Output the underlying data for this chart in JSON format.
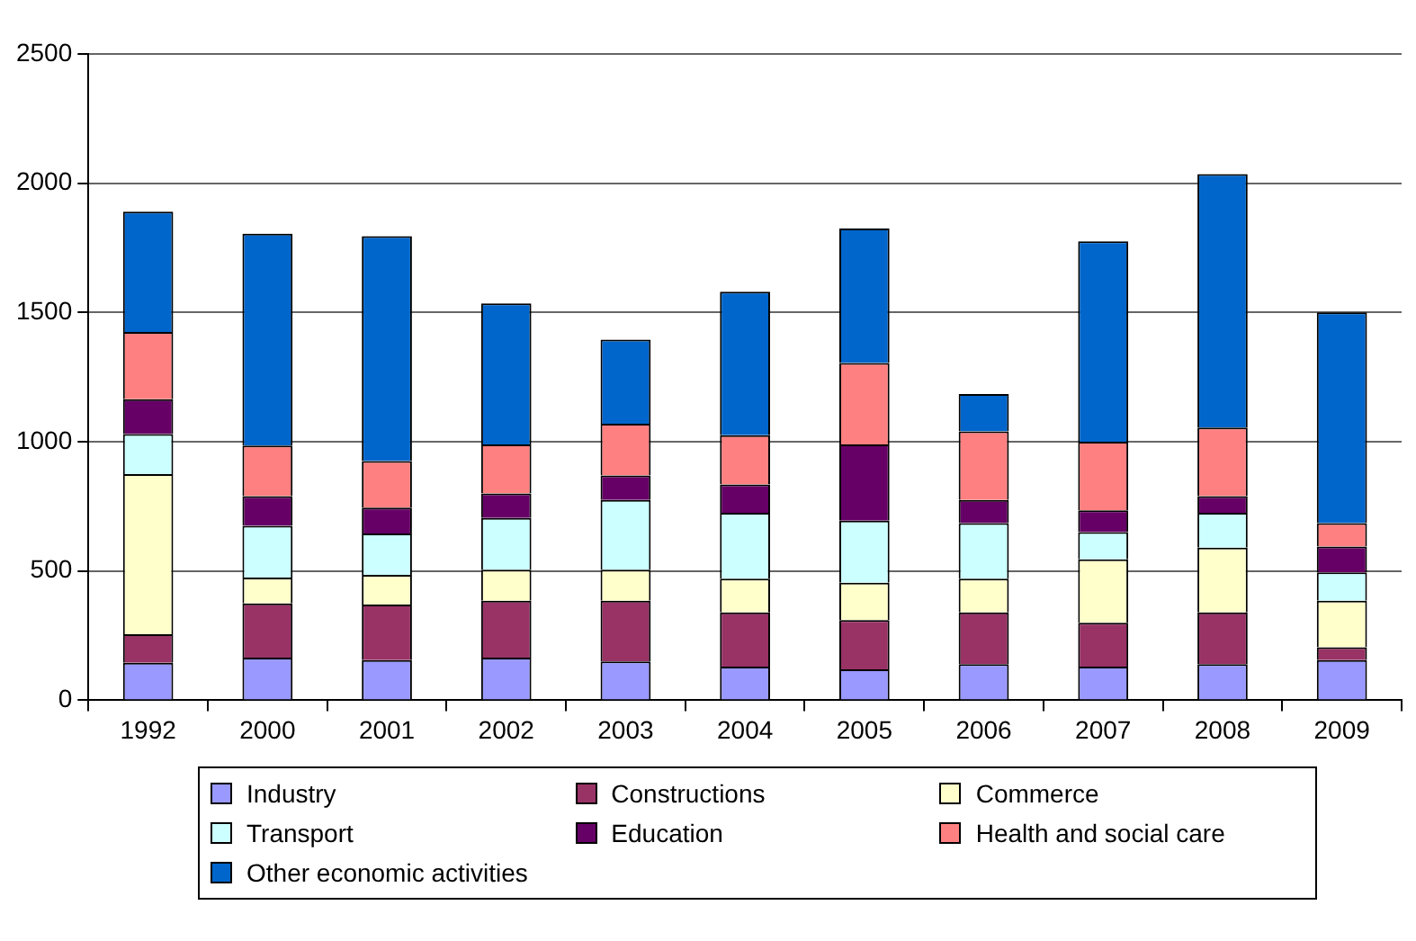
{
  "chart_data": {
    "type": "bar",
    "stacked": true,
    "categories": [
      "1992",
      "2000",
      "2001",
      "2002",
      "2003",
      "2004",
      "2005",
      "2006",
      "2007",
      "2008",
      "2009"
    ],
    "series": [
      {
        "name": "Industry",
        "color": "#9999ff",
        "values": [
          145,
          165,
          155,
          165,
          150,
          130,
          120,
          140,
          130,
          140,
          155
        ]
      },
      {
        "name": "Constructions",
        "color": "#993366",
        "values": [
          110,
          210,
          215,
          220,
          235,
          210,
          190,
          200,
          170,
          200,
          50
        ]
      },
      {
        "name": "Commerce",
        "color": "#ffffcc",
        "values": [
          620,
          100,
          115,
          120,
          120,
          130,
          145,
          130,
          245,
          250,
          180
        ]
      },
      {
        "name": "Transport",
        "color": "#ccffff",
        "values": [
          155,
          200,
          160,
          200,
          270,
          255,
          240,
          215,
          105,
          135,
          110
        ]
      },
      {
        "name": "Education",
        "color": "#660066",
        "values": [
          135,
          115,
          100,
          95,
          95,
          110,
          295,
          90,
          85,
          65,
          100
        ]
      },
      {
        "name": "Health and social care",
        "color": "#ff8080",
        "values": [
          260,
          195,
          180,
          190,
          200,
          190,
          315,
          265,
          265,
          265,
          90
        ]
      },
      {
        "name": "Other economic activities",
        "color": "#0066cc",
        "values": [
          465,
          820,
          870,
          545,
          325,
          555,
          520,
          145,
          775,
          980,
          815
        ]
      }
    ],
    "ylim": [
      0,
      2500
    ],
    "yticks": [
      0,
      500,
      1000,
      1500,
      2000,
      2500
    ],
    "grid": "y",
    "legend": "bottom"
  }
}
